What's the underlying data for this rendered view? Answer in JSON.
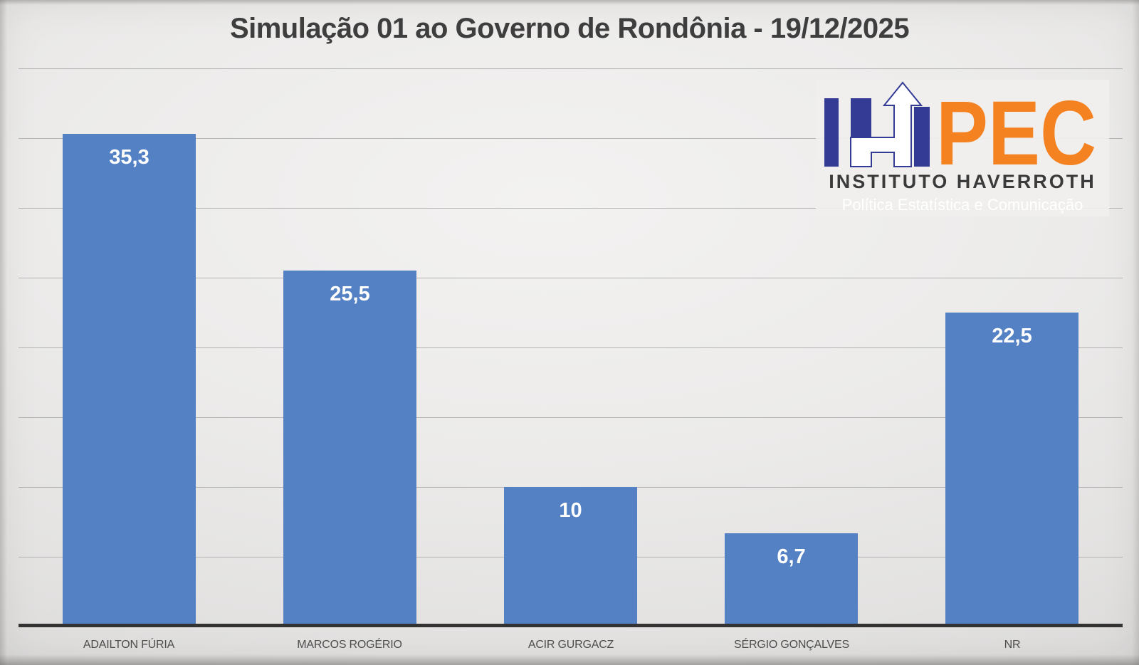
{
  "logo": {
    "mark_pec": "PEC",
    "institute_name": "INSTITUTO HAVERROTH",
    "tagline": "Política Estatística e Comunicação",
    "navy": "#343B95",
    "orange": "#F58220"
  },
  "chart_data": {
    "type": "bar",
    "title": "Simulação 01 ao Governo de Rondônia - 19/12/2025",
    "categories": [
      "ADAILTON FÚRIA",
      "MARCOS ROGÉRIO",
      "ACIR GURGACZ",
      "SÉRGIO GONÇALVES",
      "NR"
    ],
    "values": [
      35.3,
      25.5,
      10,
      6.7,
      22.5
    ],
    "value_labels": [
      "35,3",
      "25,5",
      "10",
      "6,7",
      "22,5"
    ],
    "ylim": [
      0,
      45
    ],
    "gridline_values": [
      5,
      10,
      15,
      20,
      25,
      30,
      35,
      40
    ],
    "y_tick_labels_visible": false,
    "legend": false,
    "grid": true,
    "bar_color": "#5480C4",
    "value_label_color": "#FFFFFF",
    "category_label_color": "#4D4D4D",
    "axis_line_color": "#333333",
    "xlabel": "",
    "ylabel": ""
  }
}
